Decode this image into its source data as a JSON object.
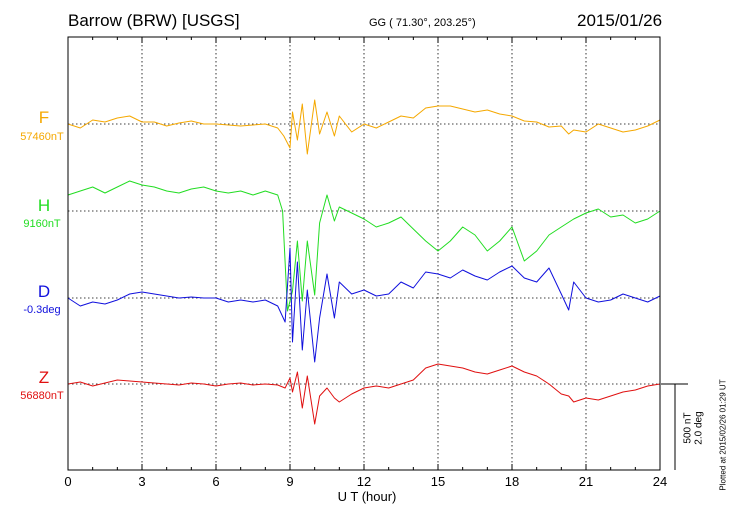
{
  "header": {
    "station": "Barrow (BRW)  [USGS]",
    "coords": "GG ( 71.30°, 203.25°)",
    "date": "2015/01/26"
  },
  "footer": {
    "plotted": "Plotted at 2015/02/26 01:29 UT"
  },
  "scale": {
    "line1": "500 nT",
    "line2": "2.0 deg"
  },
  "chart_data": {
    "type": "line",
    "xlabel": "U T (hour)",
    "xlim": [
      0,
      24
    ],
    "xticks": [
      "0",
      "3",
      "6",
      "9",
      "12",
      "15",
      "18",
      "21",
      "24"
    ],
    "grid": true,
    "series": [
      {
        "name": "F",
        "baseline_label": "57460nT",
        "color": "#f5a800",
        "x": [
          0,
          0.5,
          1,
          1.5,
          2,
          2.5,
          3,
          3.5,
          4,
          4.5,
          5,
          5.5,
          6,
          6.5,
          7,
          7.5,
          8,
          8.5,
          8.75,
          9,
          9.1,
          9.3,
          9.5,
          9.7,
          10,
          10.2,
          10.5,
          10.8,
          11,
          11.5,
          12,
          12.5,
          13,
          13.5,
          14,
          14.5,
          15,
          15.5,
          16,
          16.5,
          17,
          17.5,
          18,
          18.5,
          19,
          19.5,
          20,
          20.3,
          20.5,
          21,
          21.5,
          22,
          22.5,
          23,
          23.5,
          24
        ],
        "y": [
          0,
          -20,
          20,
          10,
          30,
          40,
          10,
          10,
          -10,
          5,
          15,
          0,
          0,
          -5,
          -10,
          -5,
          0,
          -20,
          -60,
          -120,
          60,
          -80,
          100,
          -150,
          120,
          -50,
          60,
          -60,
          40,
          -40,
          0,
          -20,
          10,
          40,
          30,
          80,
          90,
          90,
          75,
          60,
          70,
          50,
          40,
          15,
          10,
          -15,
          -10,
          -50,
          -30,
          -40,
          0,
          -20,
          -40,
          -30,
          -10,
          20
        ]
      },
      {
        "name": "H",
        "baseline_label": "9160nT",
        "color": "#22dd22",
        "x": [
          0,
          0.5,
          1,
          1.5,
          2,
          2.5,
          3,
          3.5,
          4,
          4.5,
          5,
          5.5,
          6,
          6.5,
          7,
          7.5,
          8,
          8.5,
          8.7,
          8.9,
          9.1,
          9.3,
          9.5,
          9.7,
          10,
          10.2,
          10.5,
          10.8,
          11,
          11.5,
          12,
          12.5,
          13,
          13.5,
          14,
          14.5,
          15,
          15.5,
          16,
          16.5,
          17,
          17.5,
          18,
          18.5,
          19,
          19.5,
          20,
          20.5,
          21,
          21.5,
          22,
          22.5,
          23,
          23.5,
          24
        ],
        "y": [
          80,
          100,
          120,
          90,
          120,
          150,
          130,
          120,
          100,
          90,
          110,
          120,
          100,
          90,
          100,
          80,
          100,
          80,
          0,
          -500,
          -400,
          -150,
          -450,
          -150,
          -420,
          -60,
          80,
          -50,
          20,
          -10,
          -40,
          -80,
          -60,
          -30,
          -90,
          -150,
          -200,
          -150,
          -80,
          -120,
          -200,
          -150,
          -80,
          -250,
          -200,
          -120,
          -80,
          -40,
          -10,
          10,
          -30,
          -20,
          -60,
          -40,
          0
        ]
      },
      {
        "name": "D",
        "baseline_label": "-0.3deg",
        "color": "#1010dd",
        "x": [
          0,
          0.5,
          1,
          1.5,
          2,
          2.5,
          3,
          3.5,
          4,
          4.5,
          5,
          5.5,
          6,
          6.5,
          7,
          7.5,
          8,
          8.5,
          8.8,
          9,
          9.1,
          9.3,
          9.5,
          9.7,
          10,
          10.2,
          10.5,
          10.8,
          11,
          11.5,
          12,
          12.5,
          13,
          13.5,
          14,
          14.5,
          15,
          15.5,
          16,
          16.5,
          17,
          17.5,
          18,
          18.5,
          19,
          19.5,
          20,
          20.3,
          20.5,
          21,
          21.5,
          22,
          22.5,
          23,
          23.5,
          24
        ],
        "y": [
          0,
          -40,
          -20,
          -30,
          -10,
          20,
          30,
          20,
          10,
          0,
          5,
          0,
          0,
          -20,
          -10,
          -20,
          -10,
          -40,
          -120,
          250,
          -220,
          180,
          -260,
          40,
          -320,
          -100,
          120,
          -100,
          80,
          20,
          40,
          10,
          20,
          80,
          50,
          130,
          120,
          100,
          140,
          110,
          90,
          130,
          160,
          100,
          80,
          150,
          20,
          -60,
          80,
          0,
          -20,
          -10,
          20,
          0,
          -20,
          10
        ]
      },
      {
        "name": "Z",
        "baseline_label": "56880nT",
        "color": "#e01010",
        "x": [
          0,
          0.5,
          1,
          1.5,
          2,
          2.5,
          3,
          3.5,
          4,
          4.5,
          5,
          5.5,
          6,
          6.5,
          7,
          7.5,
          8,
          8.5,
          8.8,
          9,
          9.1,
          9.3,
          9.5,
          9.7,
          10,
          10.2,
          10.5,
          10.8,
          11,
          11.5,
          12,
          12.5,
          13,
          13.5,
          14,
          14.5,
          15,
          15.5,
          16,
          16.5,
          17,
          17.5,
          18,
          18.5,
          19,
          19.5,
          20,
          20.3,
          20.5,
          21,
          21.5,
          22,
          22.5,
          23,
          23.5,
          24
        ],
        "y": [
          0,
          10,
          -10,
          5,
          20,
          15,
          10,
          5,
          0,
          -5,
          5,
          0,
          -10,
          0,
          5,
          -5,
          0,
          -5,
          -20,
          30,
          -40,
          60,
          -120,
          40,
          -200,
          -60,
          -20,
          -70,
          -90,
          -50,
          -20,
          -10,
          -20,
          0,
          20,
          80,
          100,
          90,
          80,
          60,
          50,
          70,
          90,
          60,
          40,
          0,
          -50,
          -60,
          -90,
          -70,
          -80,
          -60,
          -40,
          -30,
          -10,
          0
        ]
      }
    ]
  }
}
